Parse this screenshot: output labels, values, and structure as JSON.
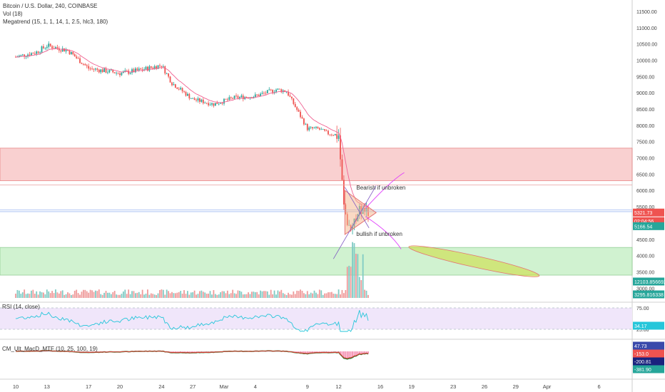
{
  "header": {
    "symbol": "Bitcoin / U.S. Dollar, 240, COINBASE",
    "vol": "Vol (18)",
    "megatrend": "Megatrend (15, 1, 1, 14, 1, 2.5, hlc3, 180)"
  },
  "indicators": {
    "rsi_label": "RSI (14, close)",
    "macd_label": "CM_Ult_MacD_MTF (10, 25, 100, 19)"
  },
  "annotations": {
    "bearish": "Bearish if unbroken",
    "bullish": "bullish if unbroken"
  },
  "price_tags": {
    "last": "5321.73",
    "countdown": "02:04:56",
    "megatrend": "5166.54",
    "vol_ma": "12103.856692",
    "vol": "3295.816338"
  },
  "rsi": {
    "ticks": [
      "75.00",
      "25.00"
    ],
    "value": "34.17"
  },
  "macd": {
    "values": [
      "47.73",
      "-153.0",
      "-200.81",
      "-381.90"
    ]
  },
  "colors": {
    "up": "#26a69a",
    "down": "#ef5350",
    "megatrend": "#f06292",
    "resistance_zone": "#f8c8c8",
    "support_zone": "#c8f0c8",
    "rsi_band": "#f0e6fa"
  },
  "chart_data": {
    "type": "candlestick",
    "title": "Bitcoin / U.S. Dollar, 240, COINBASE",
    "xlabel": "",
    "ylabel": "",
    "x_ticks": [
      "10",
      "13",
      "17",
      "20",
      "24",
      "27",
      "Mar",
      "4",
      "9",
      "12",
      "16",
      "19",
      "23",
      "26",
      "29",
      "Apr",
      "6"
    ],
    "y_ticks": [
      3000,
      3500,
      4000,
      4500,
      5000,
      5500,
      6000,
      6500,
      7000,
      7500,
      8000,
      8500,
      9000,
      9500,
      10000,
      10500,
      11000,
      11500
    ],
    "ylim": [
      2700,
      11850
    ],
    "series": [
      {
        "name": "price",
        "x": [
          "Feb 10",
          "Feb 12",
          "Feb 13",
          "Feb 15",
          "Feb 17",
          "Feb 19",
          "Feb 20",
          "Feb 22",
          "Feb 24",
          "Feb 25",
          "Feb 27",
          "Feb 29",
          "Mar 2",
          "Mar 4",
          "Mar 6",
          "Mar 7",
          "Mar 9",
          "Mar 10",
          "Mar 11",
          "Mar 12",
          "Mar 12",
          "Mar 13",
          "Mar 13",
          "Mar 14",
          "Mar 15"
        ],
        "y": [
          10100,
          10250,
          10450,
          10300,
          9750,
          9650,
          9600,
          9700,
          9850,
          9300,
          8800,
          8650,
          8850,
          8900,
          9100,
          9050,
          7900,
          7900,
          7750,
          7700,
          5500,
          4800,
          5100,
          5400,
          5300
        ]
      }
    ],
    "zones": [
      {
        "name": "resistance",
        "from": 6300,
        "to": 7300
      },
      {
        "name": "support",
        "from": 3400,
        "to": 4250
      }
    ],
    "horizontal_lines": [
      6170,
      5400,
      5350
    ],
    "triangle": {
      "apex": 5320,
      "upper": 6000,
      "lower": 4650
    },
    "projection_ellipse": {
      "from": "Mar 19",
      "to": "Mar 31",
      "upper": 4250,
      "lower": 3400
    }
  }
}
